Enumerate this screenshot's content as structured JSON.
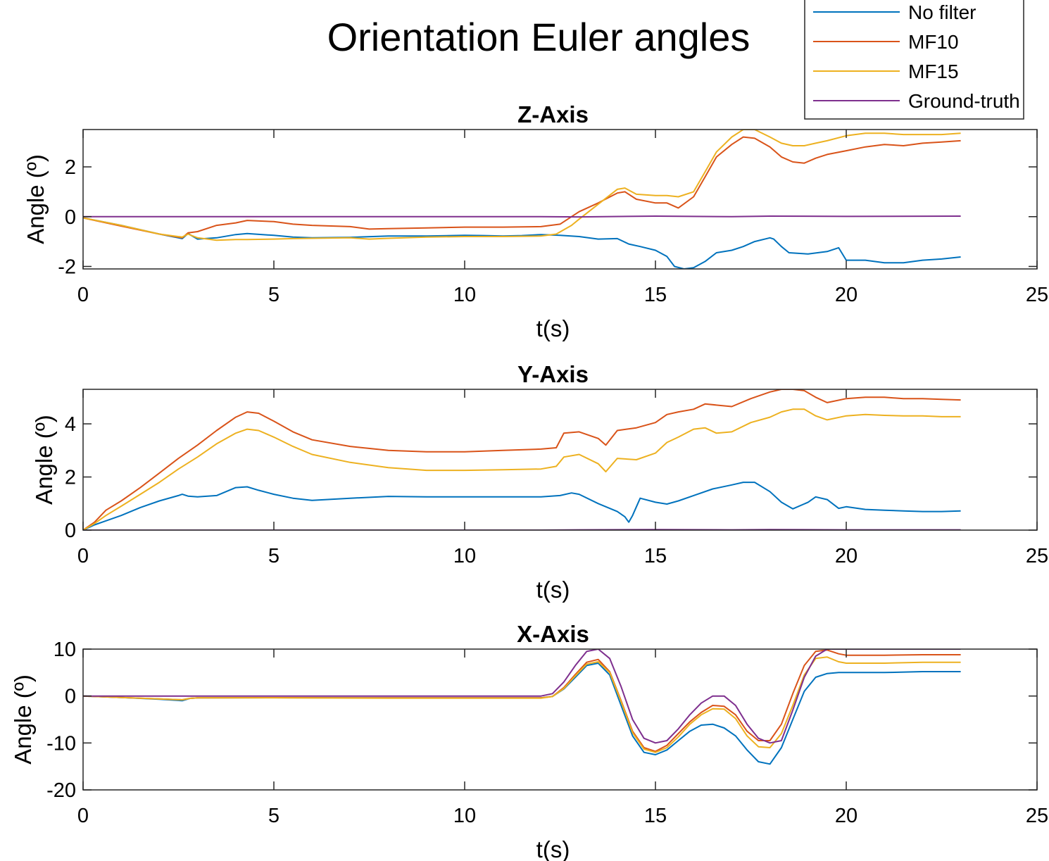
{
  "figure": {
    "title": "Orientation Euler angles"
  },
  "legend": {
    "placement": "top-right",
    "entries": [
      {
        "name": "No filter",
        "color": "#0072BD"
      },
      {
        "name": "MF10",
        "color": "#D95319"
      },
      {
        "name": "MF15",
        "color": "#EDB120"
      },
      {
        "name": "Ground-truth",
        "color": "#7E2F8E"
      }
    ]
  },
  "chart_data": [
    {
      "type": "line",
      "title": "Z-Axis",
      "xlabel": "t(s)",
      "ylabel": "Angle (º)",
      "xlim": [
        0,
        25
      ],
      "ylim": [
        -2.1,
        3.5
      ],
      "xticks": [
        0,
        5,
        10,
        15,
        20,
        25
      ],
      "yticks": [
        -2,
        0,
        2
      ],
      "grid": false,
      "series": [
        {
          "name": "No filter",
          "color": "#0072BD",
          "x": [
            0,
            1,
            2,
            2.6,
            2.75,
            3,
            3.5,
            4,
            4.3,
            5,
            5.5,
            6,
            7,
            8,
            9,
            10,
            10.5,
            11,
            11.5,
            12,
            12.5,
            13,
            13.5,
            14,
            14.3,
            14.6,
            15,
            15.3,
            15.5,
            15.75,
            16,
            16.3,
            16.6,
            17,
            17.3,
            17.6,
            18,
            18.1,
            18.3,
            18.5,
            19,
            19.5,
            19.8,
            20,
            20.5,
            21,
            21.5,
            22,
            22.5,
            23
          ],
          "y": [
            -0.05,
            -0.35,
            -0.7,
            -0.88,
            -0.68,
            -0.9,
            -0.85,
            -0.72,
            -0.68,
            -0.75,
            -0.82,
            -0.85,
            -0.83,
            -0.78,
            -0.78,
            -0.75,
            -0.76,
            -0.78,
            -0.76,
            -0.72,
            -0.75,
            -0.8,
            -0.9,
            -0.88,
            -1.1,
            -1.2,
            -1.35,
            -1.6,
            -2.0,
            -2.1,
            -2.05,
            -1.8,
            -1.45,
            -1.35,
            -1.2,
            -1.0,
            -0.85,
            -0.9,
            -1.2,
            -1.45,
            -1.5,
            -1.4,
            -1.25,
            -1.75,
            -1.75,
            -1.85,
            -1.85,
            -1.75,
            -1.7,
            -1.62
          ]
        },
        {
          "name": "MF10",
          "color": "#D95319",
          "x": [
            0,
            1,
            2,
            2.6,
            2.75,
            3,
            3.5,
            4,
            4.3,
            5,
            5.5,
            6,
            7,
            7.5,
            8,
            9,
            10,
            11,
            12,
            12.5,
            13,
            13.5,
            14,
            14.2,
            14.5,
            15,
            15.3,
            15.6,
            16,
            16.3,
            16.6,
            17,
            17.3,
            17.6,
            18,
            18.3,
            18.6,
            18.9,
            19.2,
            19.5,
            20,
            20.5,
            21,
            21.5,
            22,
            22.5,
            23
          ],
          "y": [
            -0.05,
            -0.38,
            -0.7,
            -0.85,
            -0.65,
            -0.6,
            -0.35,
            -0.25,
            -0.15,
            -0.2,
            -0.3,
            -0.35,
            -0.4,
            -0.5,
            -0.48,
            -0.45,
            -0.42,
            -0.42,
            -0.4,
            -0.3,
            0.2,
            0.55,
            0.95,
            1.0,
            0.7,
            0.55,
            0.55,
            0.35,
            0.8,
            1.6,
            2.4,
            2.9,
            3.2,
            3.15,
            2.8,
            2.4,
            2.2,
            2.15,
            2.35,
            2.5,
            2.65,
            2.8,
            2.9,
            2.85,
            2.95,
            3.0,
            3.05
          ]
        },
        {
          "name": "MF15",
          "color": "#EDB120",
          "x": [
            0,
            1,
            2,
            2.6,
            2.75,
            3,
            3.5,
            4,
            4.3,
            5,
            5.5,
            6,
            7,
            7.5,
            8,
            9,
            10,
            11,
            12,
            12.4,
            12.8,
            13,
            13.5,
            14,
            14.2,
            14.5,
            15,
            15.3,
            15.6,
            16,
            16.3,
            16.6,
            17,
            17.3,
            17.6,
            18,
            18.3,
            18.6,
            18.9,
            19.2,
            19.5,
            20,
            20.5,
            21,
            21.5,
            22,
            22.5,
            23
          ],
          "y": [
            -0.05,
            -0.35,
            -0.7,
            -0.82,
            -0.7,
            -0.85,
            -0.95,
            -0.92,
            -0.92,
            -0.9,
            -0.88,
            -0.87,
            -0.85,
            -0.9,
            -0.87,
            -0.82,
            -0.8,
            -0.8,
            -0.78,
            -0.7,
            -0.35,
            -0.1,
            0.5,
            1.1,
            1.15,
            0.9,
            0.85,
            0.85,
            0.8,
            1.0,
            1.8,
            2.6,
            3.2,
            3.5,
            3.5,
            3.2,
            2.95,
            2.85,
            2.85,
            2.95,
            3.05,
            3.25,
            3.35,
            3.35,
            3.3,
            3.3,
            3.3,
            3.35
          ]
        },
        {
          "name": "Ground-truth",
          "color": "#7E2F8E",
          "x": [
            0,
            5,
            10,
            12,
            13,
            15,
            17,
            18,
            20,
            23
          ],
          "y": [
            0,
            0,
            0,
            0,
            -0.01,
            0.02,
            0,
            0.02,
            0.01,
            0.02
          ]
        }
      ]
    },
    {
      "type": "line",
      "title": "Y-Axis",
      "xlabel": "t(s)",
      "ylabel": "Angle (º)",
      "xlim": [
        0,
        25
      ],
      "ylim": [
        0,
        5.3
      ],
      "xticks": [
        0,
        5,
        10,
        15,
        20,
        25
      ],
      "yticks": [
        0,
        2,
        4
      ],
      "grid": false,
      "series": [
        {
          "name": "No filter",
          "color": "#0072BD",
          "x": [
            0,
            0.3,
            0.6,
            1,
            1.5,
            2,
            2.5,
            2.6,
            2.75,
            3,
            3.5,
            4,
            4.3,
            4.6,
            5,
            5.5,
            6,
            7,
            8,
            9,
            10,
            11,
            12,
            12.5,
            12.8,
            13,
            13.5,
            14,
            14.2,
            14.3,
            14.4,
            14.6,
            15,
            15.3,
            15.6,
            16,
            16.5,
            17,
            17.3,
            17.6,
            18,
            18.3,
            18.6,
            19,
            19.2,
            19.5,
            19.8,
            20,
            20.5,
            21,
            21.5,
            22,
            22.5,
            23
          ],
          "y": [
            0,
            0.2,
            0.35,
            0.55,
            0.85,
            1.1,
            1.3,
            1.35,
            1.28,
            1.25,
            1.3,
            1.6,
            1.63,
            1.5,
            1.35,
            1.2,
            1.12,
            1.2,
            1.27,
            1.25,
            1.25,
            1.25,
            1.25,
            1.3,
            1.4,
            1.35,
            1.0,
            0.7,
            0.5,
            0.3,
            0.55,
            1.2,
            1.05,
            0.98,
            1.1,
            1.3,
            1.55,
            1.7,
            1.8,
            1.8,
            1.45,
            1.05,
            0.8,
            1.05,
            1.25,
            1.15,
            0.82,
            0.88,
            0.78,
            0.75,
            0.72,
            0.7,
            0.7,
            0.72
          ]
        },
        {
          "name": "MF10",
          "color": "#D95319",
          "x": [
            0,
            0.3,
            0.6,
            1,
            1.5,
            2,
            2.5,
            3,
            3.5,
            4,
            4.3,
            4.6,
            5,
            5.5,
            6,
            7,
            8,
            9,
            10,
            11,
            12,
            12.4,
            12.6,
            13,
            13.5,
            13.7,
            14,
            14.5,
            15,
            15.3,
            15.6,
            16,
            16.3,
            17,
            17.5,
            18,
            18.3,
            18.6,
            18.9,
            19.2,
            19.5,
            20,
            20.5,
            21,
            21.5,
            22,
            22.5,
            23
          ],
          "y": [
            0,
            0.3,
            0.75,
            1.1,
            1.6,
            2.15,
            2.7,
            3.2,
            3.75,
            4.25,
            4.45,
            4.4,
            4.1,
            3.7,
            3.4,
            3.15,
            3.0,
            2.95,
            2.95,
            3.0,
            3.05,
            3.1,
            3.65,
            3.7,
            3.45,
            3.2,
            3.75,
            3.85,
            4.05,
            4.35,
            4.45,
            4.55,
            4.75,
            4.65,
            4.95,
            5.2,
            5.3,
            5.3,
            5.25,
            5.0,
            4.8,
            4.95,
            5.0,
            5.0,
            4.95,
            4.95,
            4.92,
            4.9
          ]
        },
        {
          "name": "MF15",
          "color": "#EDB120",
          "x": [
            0,
            0.3,
            0.6,
            1,
            1.5,
            2,
            2.5,
            3,
            3.5,
            4,
            4.3,
            4.6,
            5,
            5.5,
            6,
            7,
            8,
            9,
            10,
            11,
            12,
            12.4,
            12.6,
            13,
            13.5,
            13.7,
            14,
            14.5,
            15,
            15.3,
            15.6,
            16,
            16.3,
            16.6,
            17,
            17.5,
            18,
            18.3,
            18.6,
            18.9,
            19.2,
            19.5,
            20,
            20.5,
            21,
            21.5,
            22,
            22.5,
            23
          ],
          "y": [
            0,
            0.25,
            0.55,
            0.9,
            1.35,
            1.8,
            2.3,
            2.75,
            3.25,
            3.65,
            3.8,
            3.75,
            3.5,
            3.15,
            2.85,
            2.55,
            2.35,
            2.25,
            2.25,
            2.27,
            2.3,
            2.4,
            2.75,
            2.85,
            2.5,
            2.2,
            2.7,
            2.65,
            2.9,
            3.3,
            3.5,
            3.8,
            3.85,
            3.65,
            3.7,
            4.05,
            4.25,
            4.45,
            4.55,
            4.55,
            4.3,
            4.15,
            4.3,
            4.35,
            4.32,
            4.3,
            4.3,
            4.27,
            4.27
          ]
        },
        {
          "name": "Ground-truth",
          "color": "#7E2F8E",
          "x": [
            0,
            5,
            10,
            12,
            13,
            15,
            17,
            18,
            20,
            23
          ],
          "y": [
            0,
            0,
            0,
            0,
            0.01,
            0.02,
            0.01,
            0.02,
            0.01,
            0.01
          ]
        }
      ]
    },
    {
      "type": "line",
      "title": "X-Axis",
      "xlabel": "t(s)",
      "ylabel": "Angle (º)",
      "xlim": [
        0,
        25
      ],
      "ylim": [
        -20,
        10
      ],
      "xticks": [
        0,
        5,
        10,
        15,
        20,
        25
      ],
      "yticks": [
        -20,
        -10,
        0,
        10
      ],
      "grid": false,
      "series": [
        {
          "name": "No filter",
          "color": "#0072BD",
          "x": [
            0,
            1,
            2,
            2.6,
            2.8,
            3,
            5,
            8,
            10,
            11,
            12,
            12.3,
            12.6,
            12.9,
            13.2,
            13.5,
            13.8,
            14.1,
            14.4,
            14.7,
            15,
            15.3,
            15.6,
            15.9,
            16.2,
            16.5,
            16.8,
            17.1,
            17.4,
            17.7,
            18,
            18.3,
            18.6,
            18.9,
            19.2,
            19.5,
            19.8,
            20,
            21,
            22,
            23
          ],
          "y": [
            0,
            -0.3,
            -0.7,
            -1.0,
            -0.5,
            -0.4,
            -0.35,
            -0.4,
            -0.4,
            -0.4,
            -0.4,
            -0.1,
            1.5,
            4.0,
            6.5,
            7.0,
            4.5,
            -2.0,
            -8.5,
            -12.0,
            -12.5,
            -11.5,
            -9.5,
            -7.5,
            -6.2,
            -6.0,
            -6.8,
            -8.5,
            -11.5,
            -14.0,
            -14.5,
            -11.0,
            -5.0,
            1.0,
            4.0,
            4.8,
            5.0,
            5.0,
            5.0,
            5.2,
            5.2
          ]
        },
        {
          "name": "MF10",
          "color": "#D95319",
          "x": [
            0,
            1,
            2,
            2.6,
            2.8,
            3,
            5,
            8,
            10,
            11,
            12,
            12.3,
            12.6,
            12.9,
            13.2,
            13.5,
            13.8,
            14.1,
            14.4,
            14.7,
            15,
            15.3,
            15.6,
            15.9,
            16.2,
            16.5,
            16.8,
            17.1,
            17.4,
            17.7,
            18,
            18.3,
            18.6,
            18.9,
            19.2,
            19.5,
            19.8,
            20,
            21,
            22,
            23
          ],
          "y": [
            0,
            -0.3,
            -0.6,
            -0.8,
            -0.5,
            -0.4,
            -0.35,
            -0.4,
            -0.4,
            -0.4,
            -0.4,
            -0.1,
            1.8,
            4.6,
            7.2,
            7.8,
            5.2,
            -1.0,
            -7.5,
            -11.0,
            -11.8,
            -10.5,
            -8.0,
            -5.5,
            -3.5,
            -2.0,
            -2.2,
            -4.0,
            -7.5,
            -9.5,
            -9.5,
            -6.0,
            0.5,
            6.5,
            9.5,
            9.8,
            9.0,
            8.7,
            8.7,
            8.8,
            8.8
          ]
        },
        {
          "name": "MF15",
          "color": "#EDB120",
          "x": [
            0,
            1,
            2,
            2.6,
            2.8,
            3,
            5,
            8,
            10,
            11,
            12,
            12.3,
            12.6,
            12.9,
            13.2,
            13.5,
            13.8,
            14.1,
            14.4,
            14.7,
            15,
            15.3,
            15.6,
            15.9,
            16.2,
            16.5,
            16.8,
            17.1,
            17.4,
            17.7,
            18,
            18.3,
            18.6,
            18.9,
            19.2,
            19.5,
            19.8,
            20,
            21,
            22,
            23
          ],
          "y": [
            0,
            -0.3,
            -0.6,
            -0.8,
            -0.5,
            -0.4,
            -0.4,
            -0.45,
            -0.45,
            -0.45,
            -0.45,
            -0.1,
            1.6,
            4.3,
            6.8,
            7.3,
            5.0,
            -1.2,
            -7.8,
            -11.3,
            -12.0,
            -11.0,
            -8.7,
            -6.0,
            -4.0,
            -2.7,
            -2.8,
            -4.8,
            -8.5,
            -10.8,
            -11.0,
            -8.0,
            -2.0,
            4.5,
            8.0,
            8.3,
            7.3,
            7.0,
            7.0,
            7.2,
            7.2
          ]
        },
        {
          "name": "Ground-truth",
          "color": "#7E2F8E",
          "x": [
            0,
            5,
            10,
            12,
            12.3,
            12.6,
            12.9,
            13.2,
            13.5,
            13.8,
            14.1,
            14.4,
            14.7,
            15,
            15.3,
            15.6,
            15.9,
            16.2,
            16.5,
            16.8,
            17.1,
            17.4,
            17.7,
            18,
            18.3,
            18.6,
            18.9,
            19.2,
            19.5,
            19.8,
            20,
            21,
            22,
            23
          ],
          "y": [
            0,
            0,
            0,
            0,
            0.5,
            3.0,
            6.5,
            9.5,
            10,
            8.0,
            2.0,
            -5.0,
            -9.0,
            -10.0,
            -9.5,
            -7.0,
            -4.0,
            -1.5,
            0,
            0,
            -2.0,
            -6.0,
            -9.0,
            -10.0,
            -9.5,
            -3.0,
            4.0,
            8.5,
            10,
            10,
            10,
            10,
            10,
            10
          ]
        }
      ]
    }
  ]
}
